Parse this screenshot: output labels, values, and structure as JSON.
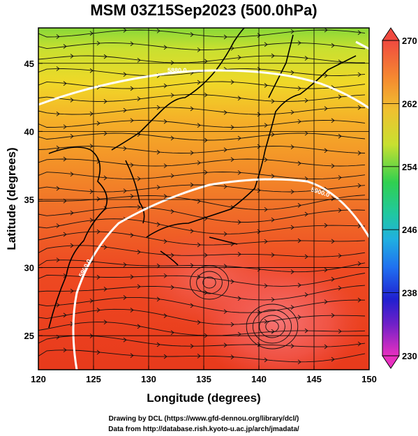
{
  "title": "MSM 03Z15Sep2023 (500.0hPa)",
  "xlabel": "Longitude (degrees)",
  "ylabel": "Latitude  (degrees)",
  "x_ticks": [
    "120",
    "125",
    "130",
    "135",
    "140",
    "145",
    "150"
  ],
  "y_ticks": [
    "25",
    "30",
    "35",
    "40",
    "45"
  ],
  "colorbar": {
    "ticks": [
      "270",
      "262",
      "254",
      "246",
      "238",
      "230"
    ],
    "min": 230,
    "max": 270
  },
  "contours": [
    {
      "label": "5880.0"
    },
    {
      "label": "5900.0"
    },
    {
      "label": "5900.0"
    }
  ],
  "credits": {
    "line1": "Drawing by DCL (https://www.gfd-dennou.org/library/dcl/)",
    "line2": "Data from http://database.rish.kyoto-u.ac.jp/arch/jmadata/"
  },
  "colors": {
    "warm_core": "#f0504a",
    "orange": "#f5a020",
    "yellow": "#e8e020",
    "green": "#80d030"
  }
}
